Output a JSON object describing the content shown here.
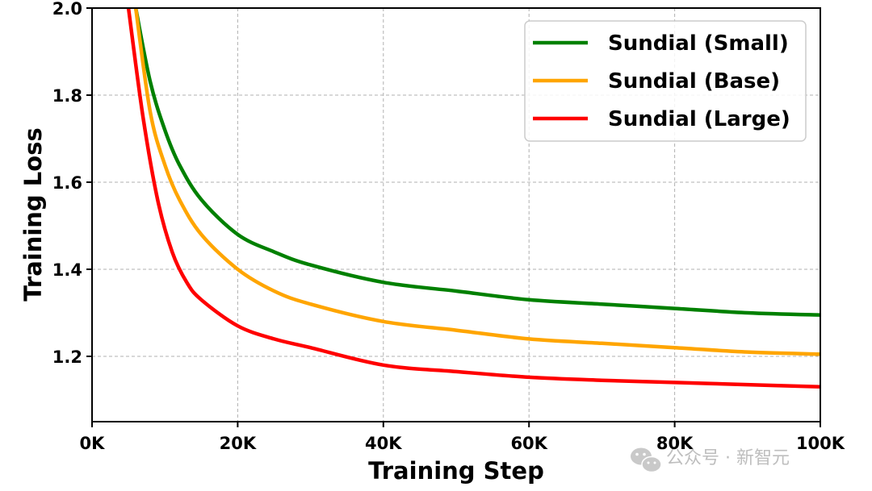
{
  "chart_data": {
    "type": "line",
    "xlabel": "Training Step",
    "ylabel": "Training Loss",
    "xlim": [
      0,
      100000
    ],
    "ylim": [
      1.05,
      2.0
    ],
    "xticks": [
      {
        "value": 0,
        "label": "0K"
      },
      {
        "value": 20000,
        "label": "20K"
      },
      {
        "value": 40000,
        "label": "40K"
      },
      {
        "value": 60000,
        "label": "60K"
      },
      {
        "value": 80000,
        "label": "80K"
      },
      {
        "value": 100000,
        "label": "100K"
      }
    ],
    "yticks": [
      {
        "value": 1.2,
        "label": "1.2"
      },
      {
        "value": 1.4,
        "label": "1.4"
      },
      {
        "value": 1.6,
        "label": "1.6"
      },
      {
        "value": 1.8,
        "label": "1.8"
      },
      {
        "value": 2.0,
        "label": "2.0"
      }
    ],
    "grid": true,
    "legend_position": "top-right",
    "series": [
      {
        "name": "Sundial (Small)",
        "color": "#008000",
        "x": [
          6000,
          8000,
          10000,
          12000,
          15000,
          20000,
          25000,
          30000,
          40000,
          50000,
          60000,
          70000,
          80000,
          90000,
          100000
        ],
        "y": [
          2.0,
          1.83,
          1.72,
          1.64,
          1.56,
          1.48,
          1.44,
          1.41,
          1.37,
          1.35,
          1.33,
          1.32,
          1.31,
          1.3,
          1.295
        ]
      },
      {
        "name": "Sundial (Base)",
        "color": "#FFA500",
        "x": [
          6000,
          8000,
          10000,
          12000,
          15000,
          20000,
          25000,
          30000,
          40000,
          50000,
          60000,
          70000,
          80000,
          90000,
          100000
        ],
        "y": [
          2.0,
          1.76,
          1.64,
          1.56,
          1.48,
          1.4,
          1.35,
          1.32,
          1.28,
          1.26,
          1.24,
          1.23,
          1.22,
          1.21,
          1.205
        ]
      },
      {
        "name": "Sundial (Large)",
        "color": "#FF0000",
        "x": [
          5000,
          7000,
          9000,
          11000,
          13000,
          15000,
          20000,
          25000,
          30000,
          40000,
          50000,
          60000,
          70000,
          80000,
          90000,
          100000
        ],
        "y": [
          2.0,
          1.75,
          1.56,
          1.44,
          1.37,
          1.33,
          1.27,
          1.24,
          1.22,
          1.18,
          1.165,
          1.152,
          1.145,
          1.14,
          1.135,
          1.13
        ]
      }
    ]
  },
  "watermark": {
    "icon": "wechat-icon",
    "text": "公众号 · 新智元"
  }
}
